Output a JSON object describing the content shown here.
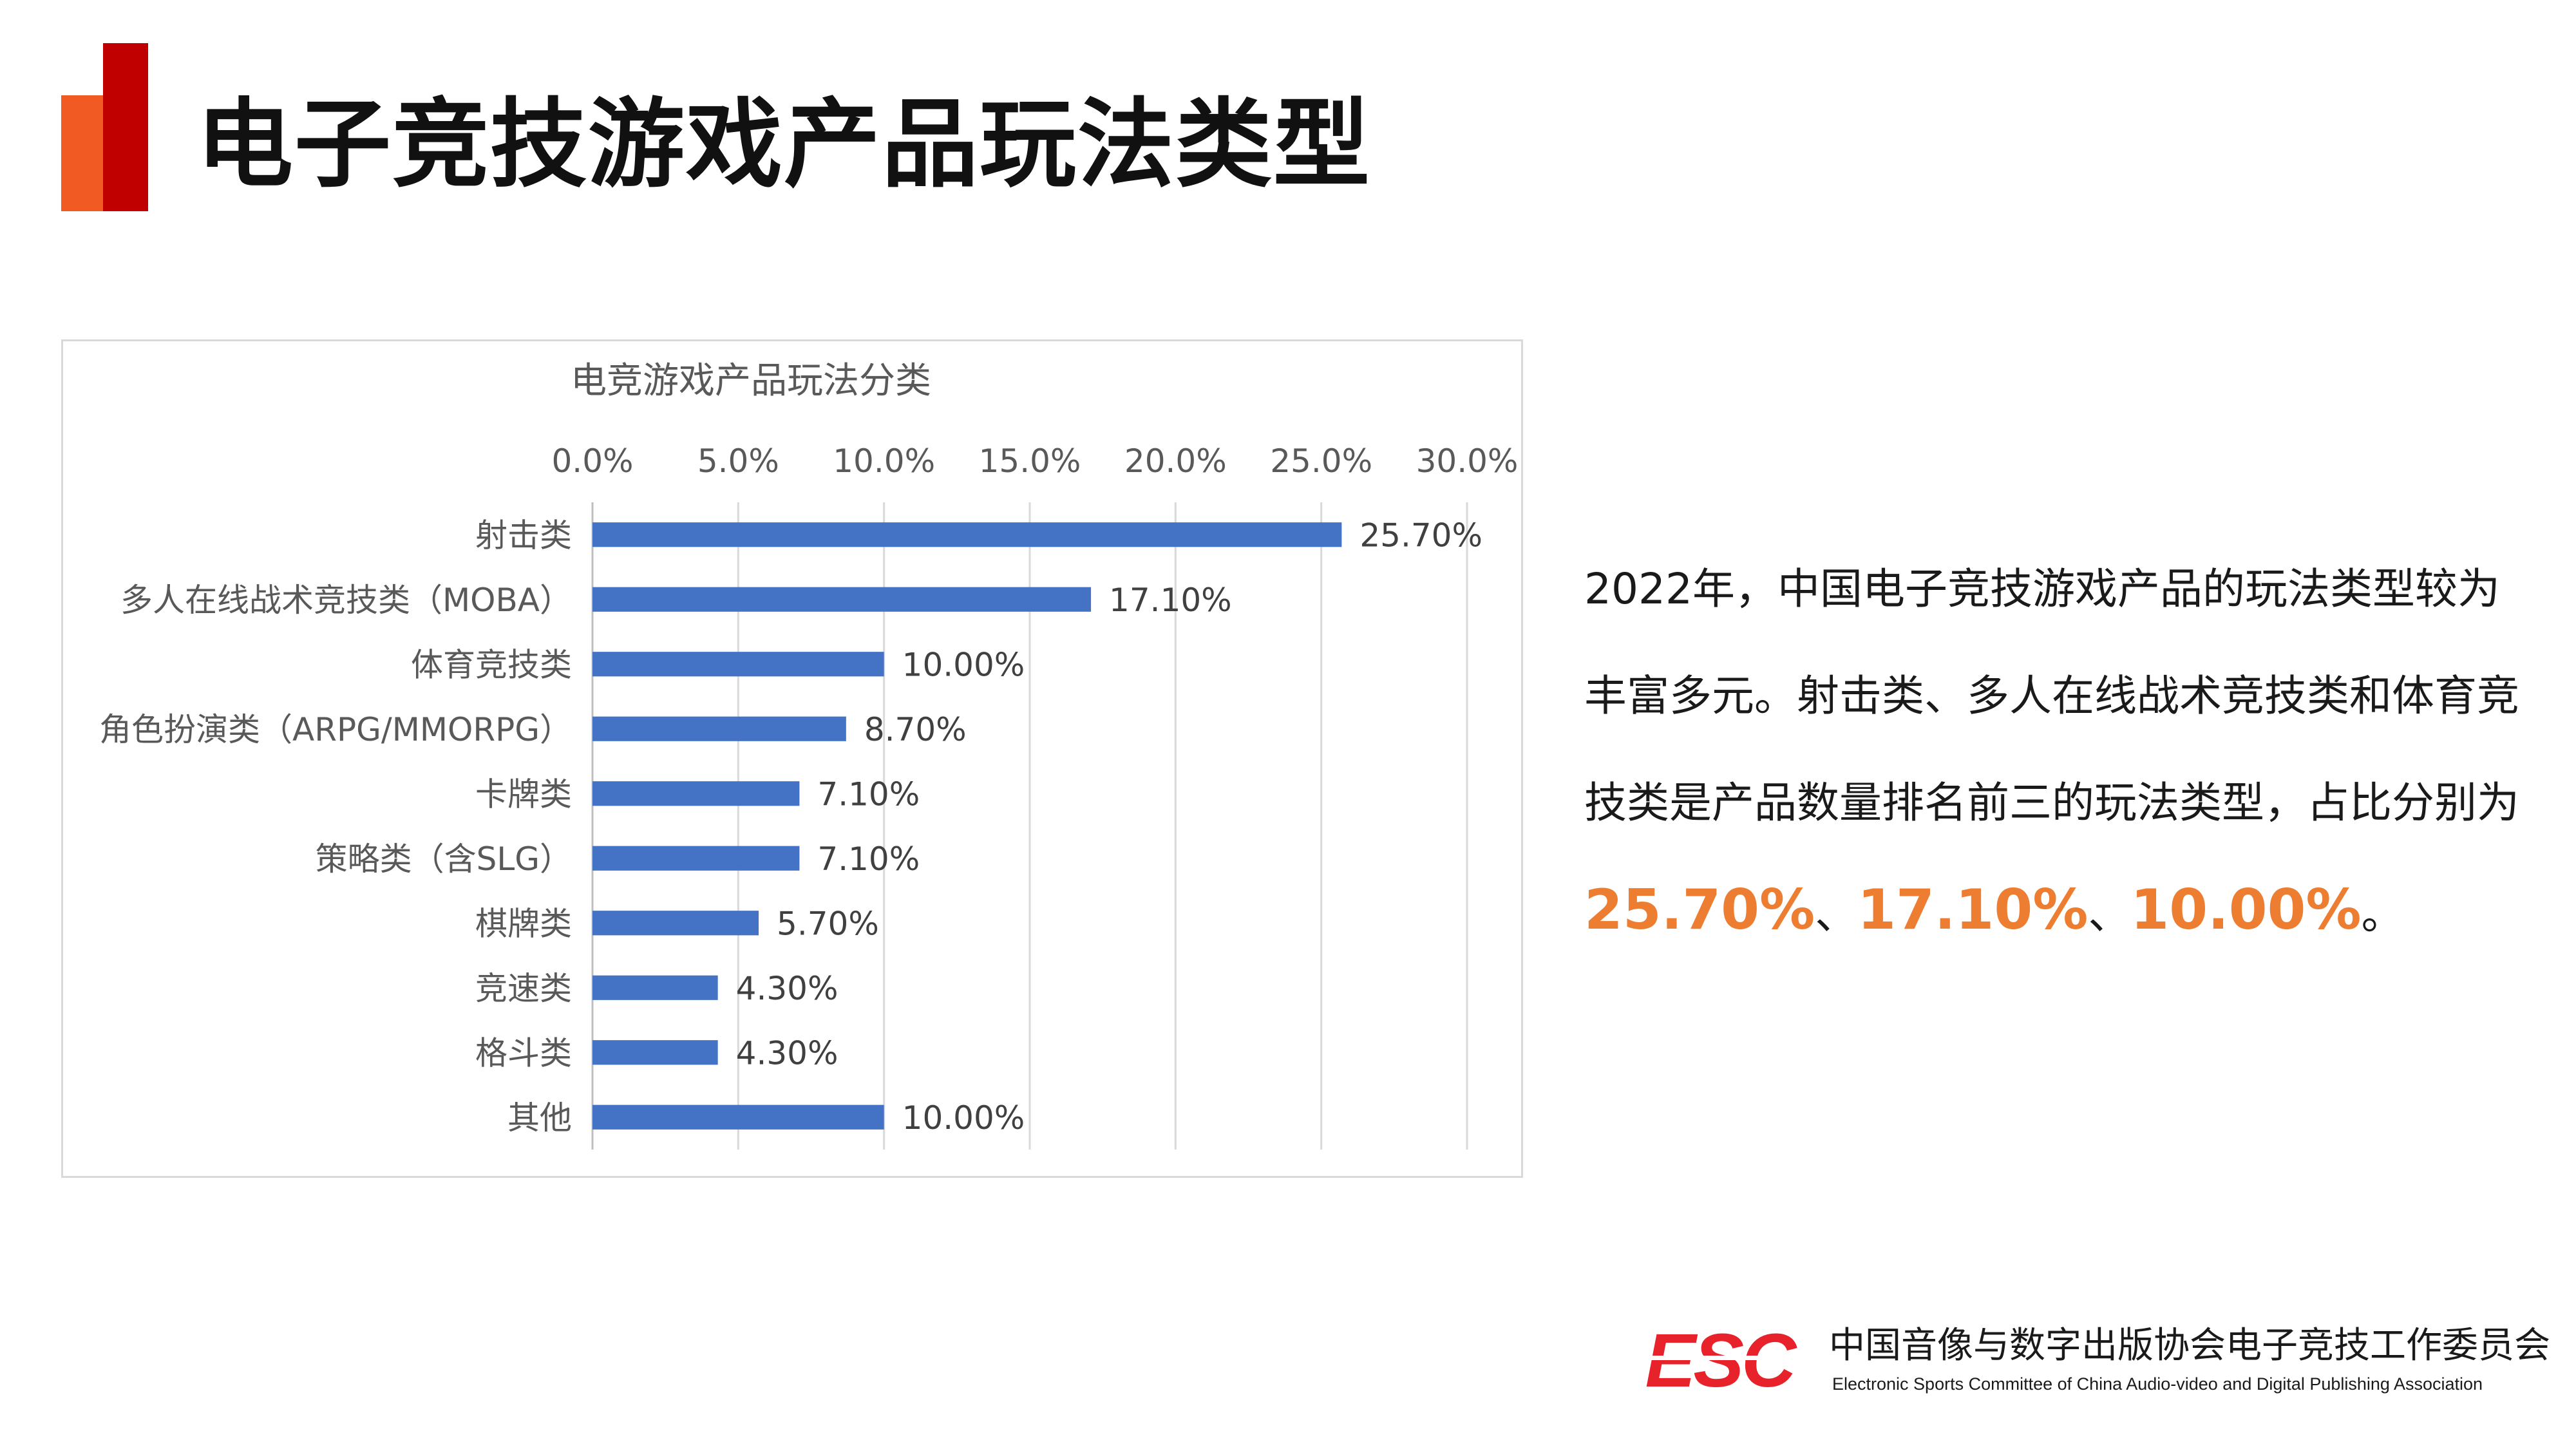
{
  "page": {
    "title": "电子竞技游戏产品玩法类型"
  },
  "colors": {
    "accent_orange": "#f15a22",
    "accent_red": "#c00000",
    "bar": "#4472c4",
    "highlight": "#ed7d31"
  },
  "chart_data": {
    "type": "bar",
    "orientation": "horizontal",
    "title": "电竞游戏产品玩法分类",
    "categories": [
      "射击类",
      "多人在线战术竞技类（MOBA）",
      "体育竞技类",
      "角色扮演类（ARPG/MMORPG）",
      "卡牌类",
      "策略类（含SLG）",
      "棋牌类",
      "竞速类",
      "格斗类",
      "其他"
    ],
    "values": [
      25.7,
      17.1,
      10.0,
      8.7,
      7.1,
      7.1,
      5.7,
      4.3,
      4.3,
      10.0
    ],
    "value_labels": [
      "25.70%",
      "17.10%",
      "10.00%",
      "8.70%",
      "7.10%",
      "7.10%",
      "5.70%",
      "4.30%",
      "4.30%",
      "10.00%"
    ],
    "xlim": [
      0,
      30
    ],
    "ticks": [
      0,
      5,
      10,
      15,
      20,
      25,
      30
    ],
    "tick_labels": [
      "0.0%",
      "5.0%",
      "10.0%",
      "15.0%",
      "20.0%",
      "25.0%",
      "30.0%"
    ],
    "x_axis_position": "top",
    "grid": true,
    "legend": "none"
  },
  "summary": {
    "text_before": "2022年，中国电子竞技游戏产品的玩法类型较为丰富多元。射击类、多人在线战术竞技类和体育竞技类是产品数量排名前三的玩法类型，占比分别为",
    "highlight_1": "25.70%",
    "sep_1": "、",
    "highlight_2": "17.10%",
    "sep_2": "、",
    "highlight_3": "10.00%",
    "text_end": "。"
  },
  "footer": {
    "logo_text": "ESC",
    "org_name_cn": "中国音像与数字出版协会电子竞技工作委员会",
    "org_name_en": "Electronic Sports Committee of China Audio-video and Digital Publishing Association"
  }
}
